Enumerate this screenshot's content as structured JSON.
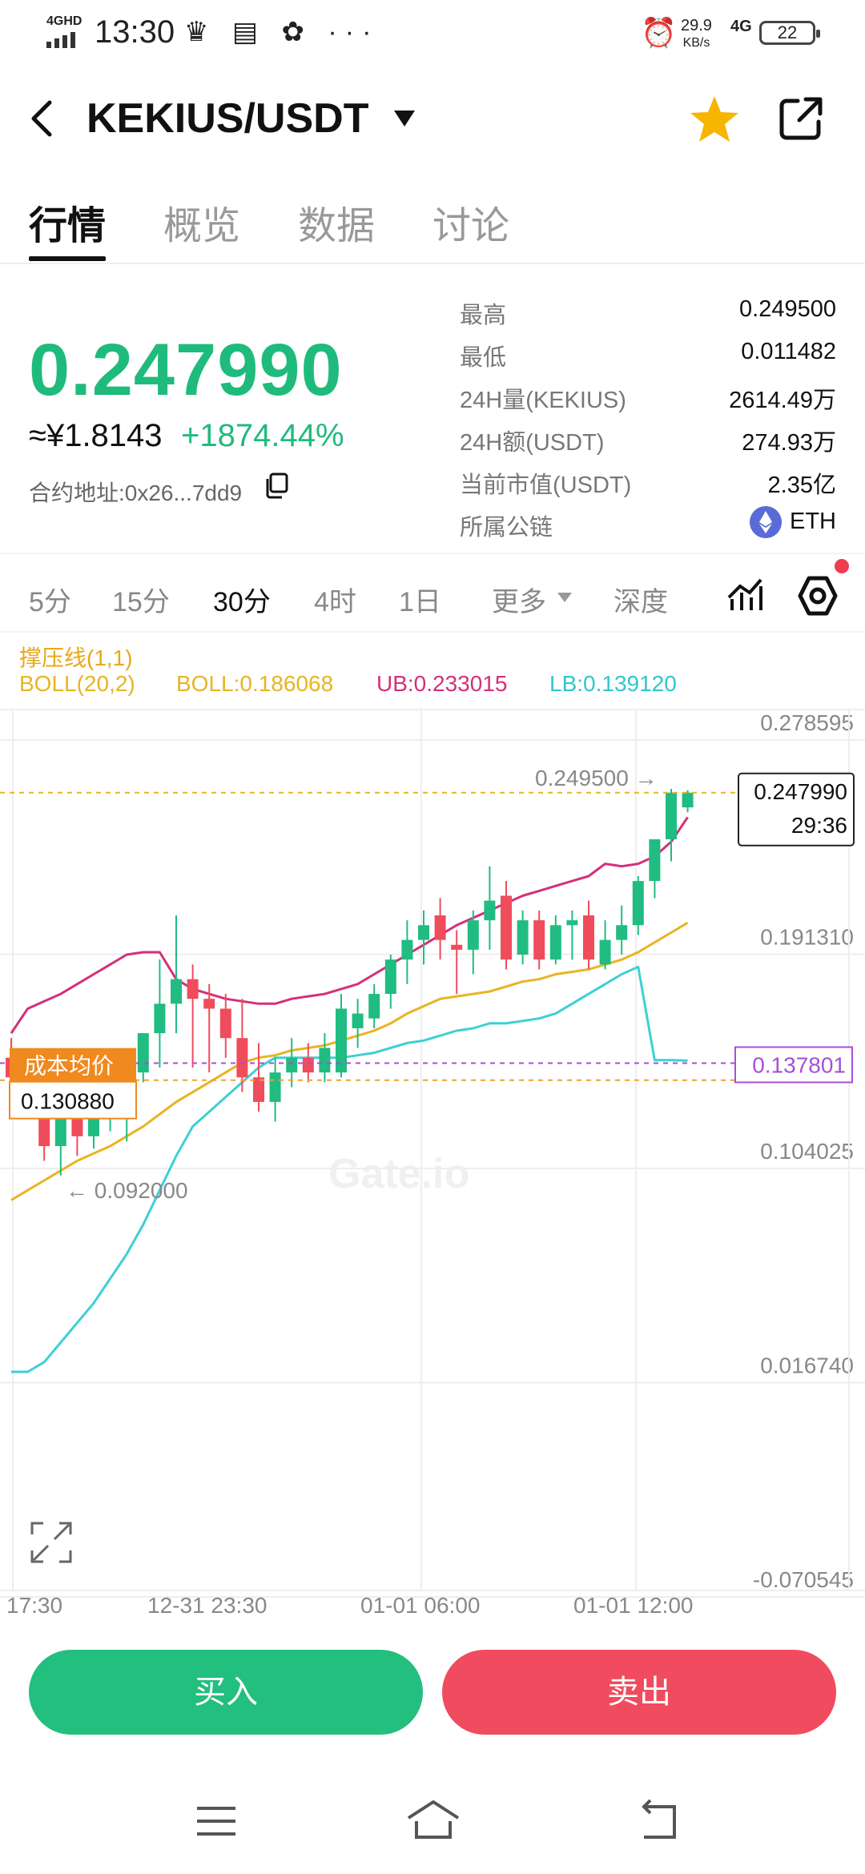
{
  "status_bar": {
    "network": "4GHD",
    "time": "13:30",
    "icons": "♛ ▤ ✿ ···",
    "speed_value": "29.9",
    "speed_unit": "KB/s",
    "signal": "4G",
    "battery": "22"
  },
  "header": {
    "pair": "KEKIUS/USDT",
    "favorite_color": "#f7b500"
  },
  "tabs": [
    {
      "label": "行情",
      "active": true
    },
    {
      "label": "概览",
      "active": false
    },
    {
      "label": "数据",
      "active": false
    },
    {
      "label": "讨论",
      "active": false
    }
  ],
  "price": {
    "last": "0.247990",
    "cny": "≈¥1.8143",
    "change": "+1874.44%",
    "contract_label": "合约地址:",
    "contract_address": "0x26...7dd9"
  },
  "stats": [
    {
      "label": "最高",
      "value": "0.249500"
    },
    {
      "label": "最低",
      "value": "0.011482"
    },
    {
      "label": "24H量(KEKIUS)",
      "value": "2614.49万"
    },
    {
      "label": "24H额(USDT)",
      "value": "274.93万"
    },
    {
      "label": "当前市值(USDT)",
      "value": "2.35亿"
    },
    {
      "label": "所属公链",
      "value": "ETH"
    }
  ],
  "intervals": [
    {
      "label": "5分",
      "active": false
    },
    {
      "label": "15分",
      "active": false
    },
    {
      "label": "30分",
      "active": true
    },
    {
      "label": "4时",
      "active": false
    },
    {
      "label": "1日",
      "active": false
    }
  ],
  "interval_more": "更多",
  "depth": "深度",
  "indicators": {
    "line1": "撑压线(1,1)",
    "boll_name": "BOLL(20,2)",
    "boll": "BOLL:0.186068",
    "ub": "UB:0.233015",
    "lb": "LB:0.139120"
  },
  "colors": {
    "up": "#20bc82",
    "down": "#ef4c5c",
    "boll": "#e8b422",
    "ub": "#d4307a",
    "lb": "#3dd0d4",
    "cost": "#f0891e",
    "cost_line": "#a64fd6"
  },
  "chart_data": {
    "type": "candlestick",
    "y_ticks": [
      "0.278595",
      "0.191310",
      "0.104025",
      "0.016740",
      "-0.070545"
    ],
    "x_ticks": [
      "17:30",
      "12-31 23:30",
      "01-01 06:00",
      "01-01 12:00"
    ],
    "ylim": [
      -0.070545,
      0.278595
    ],
    "high_label": "0.249500 →",
    "low_label": "← 0.092000",
    "last_price": "0.247990",
    "countdown": "29:36",
    "cost_label": "成本均价",
    "cost_price": "0.130880",
    "right_tag": "0.137801",
    "watermark": "Gate.io",
    "candles": [
      {
        "o": 0.14,
        "h": 0.148,
        "l": 0.128,
        "c": 0.132
      },
      {
        "o": 0.133,
        "h": 0.14,
        "l": 0.122,
        "c": 0.125
      },
      {
        "o": 0.126,
        "h": 0.13,
        "l": 0.098,
        "c": 0.104
      },
      {
        "o": 0.104,
        "h": 0.128,
        "l": 0.092,
        "c": 0.122
      },
      {
        "o": 0.12,
        "h": 0.126,
        "l": 0.1,
        "c": 0.108
      },
      {
        "o": 0.108,
        "h": 0.124,
        "l": 0.103,
        "c": 0.116
      },
      {
        "o": 0.116,
        "h": 0.13,
        "l": 0.11,
        "c": 0.124
      },
      {
        "o": 0.124,
        "h": 0.136,
        "l": 0.106,
        "c": 0.134
      },
      {
        "o": 0.134,
        "h": 0.15,
        "l": 0.13,
        "c": 0.15
      },
      {
        "o": 0.15,
        "h": 0.18,
        "l": 0.136,
        "c": 0.162
      },
      {
        "o": 0.162,
        "h": 0.198,
        "l": 0.15,
        "c": 0.172
      },
      {
        "o": 0.172,
        "h": 0.178,
        "l": 0.136,
        "c": 0.164
      },
      {
        "o": 0.164,
        "h": 0.17,
        "l": 0.134,
        "c": 0.16
      },
      {
        "o": 0.16,
        "h": 0.166,
        "l": 0.14,
        "c": 0.148
      },
      {
        "o": 0.148,
        "h": 0.164,
        "l": 0.126,
        "c": 0.132
      },
      {
        "o": 0.132,
        "h": 0.146,
        "l": 0.118,
        "c": 0.122
      },
      {
        "o": 0.122,
        "h": 0.14,
        "l": 0.114,
        "c": 0.134
      },
      {
        "o": 0.134,
        "h": 0.148,
        "l": 0.128,
        "c": 0.14
      },
      {
        "o": 0.14,
        "h": 0.146,
        "l": 0.13,
        "c": 0.134
      },
      {
        "o": 0.134,
        "h": 0.15,
        "l": 0.13,
        "c": 0.144
      },
      {
        "o": 0.134,
        "h": 0.166,
        "l": 0.132,
        "c": 0.16
      },
      {
        "o": 0.152,
        "h": 0.164,
        "l": 0.144,
        "c": 0.158
      },
      {
        "o": 0.156,
        "h": 0.17,
        "l": 0.152,
        "c": 0.166
      },
      {
        "o": 0.166,
        "h": 0.182,
        "l": 0.16,
        "c": 0.18
      },
      {
        "o": 0.18,
        "h": 0.196,
        "l": 0.17,
        "c": 0.188
      },
      {
        "o": 0.188,
        "h": 0.2,
        "l": 0.178,
        "c": 0.194
      },
      {
        "o": 0.198,
        "h": 0.205,
        "l": 0.18,
        "c": 0.188
      },
      {
        "o": 0.186,
        "h": 0.192,
        "l": 0.166,
        "c": 0.184
      },
      {
        "o": 0.184,
        "h": 0.2,
        "l": 0.174,
        "c": 0.196
      },
      {
        "o": 0.196,
        "h": 0.218,
        "l": 0.184,
        "c": 0.204
      },
      {
        "o": 0.206,
        "h": 0.212,
        "l": 0.176,
        "c": 0.18
      },
      {
        "o": 0.182,
        "h": 0.2,
        "l": 0.178,
        "c": 0.196
      },
      {
        "o": 0.196,
        "h": 0.2,
        "l": 0.176,
        "c": 0.18
      },
      {
        "o": 0.18,
        "h": 0.198,
        "l": 0.178,
        "c": 0.194
      },
      {
        "o": 0.194,
        "h": 0.2,
        "l": 0.18,
        "c": 0.196
      },
      {
        "o": 0.198,
        "h": 0.204,
        "l": 0.176,
        "c": 0.18
      },
      {
        "o": 0.178,
        "h": 0.196,
        "l": 0.176,
        "c": 0.188
      },
      {
        "o": 0.188,
        "h": 0.202,
        "l": 0.182,
        "c": 0.194
      },
      {
        "o": 0.194,
        "h": 0.214,
        "l": 0.19,
        "c": 0.212
      },
      {
        "o": 0.212,
        "h": 0.229,
        "l": 0.205,
        "c": 0.229
      },
      {
        "o": 0.229,
        "h": 0.2495,
        "l": 0.22,
        "c": 0.248
      },
      {
        "o": 0.242,
        "h": 0.249,
        "l": 0.24,
        "c": 0.248
      }
    ],
    "boll_mid": [
      0.082,
      0.086,
      0.09,
      0.094,
      0.098,
      0.101,
      0.104,
      0.108,
      0.112,
      0.117,
      0.122,
      0.126,
      0.13,
      0.134,
      0.138,
      0.14,
      0.141,
      0.143,
      0.144,
      0.145,
      0.147,
      0.149,
      0.151,
      0.154,
      0.158,
      0.161,
      0.164,
      0.165,
      0.166,
      0.167,
      0.169,
      0.171,
      0.172,
      0.174,
      0.175,
      0.176,
      0.178,
      0.18,
      0.183,
      0.187,
      0.191,
      0.195
    ],
    "boll_ub": [
      0.15,
      0.16,
      0.163,
      0.166,
      0.17,
      0.174,
      0.178,
      0.182,
      0.183,
      0.183,
      0.172,
      0.168,
      0.166,
      0.164,
      0.163,
      0.162,
      0.162,
      0.164,
      0.165,
      0.166,
      0.168,
      0.17,
      0.174,
      0.178,
      0.182,
      0.186,
      0.19,
      0.194,
      0.197,
      0.2,
      0.203,
      0.206,
      0.208,
      0.21,
      0.212,
      0.214,
      0.219,
      0.218,
      0.219,
      0.222,
      0.228,
      0.238
    ],
    "boll_lb": [
      0.012,
      0.012,
      0.016,
      0.024,
      0.032,
      0.04,
      0.05,
      0.06,
      0.072,
      0.086,
      0.1,
      0.112,
      0.118,
      0.124,
      0.13,
      0.136,
      0.14,
      0.14,
      0.14,
      0.14,
      0.14,
      0.141,
      0.142,
      0.144,
      0.146,
      0.147,
      0.149,
      0.151,
      0.152,
      0.154,
      0.154,
      0.155,
      0.156,
      0.158,
      0.162,
      0.166,
      0.17,
      0.174,
      0.177,
      0.1378,
      0.1378,
      0.1378
    ]
  },
  "actions": {
    "buy": "买入",
    "sell": "卖出"
  }
}
